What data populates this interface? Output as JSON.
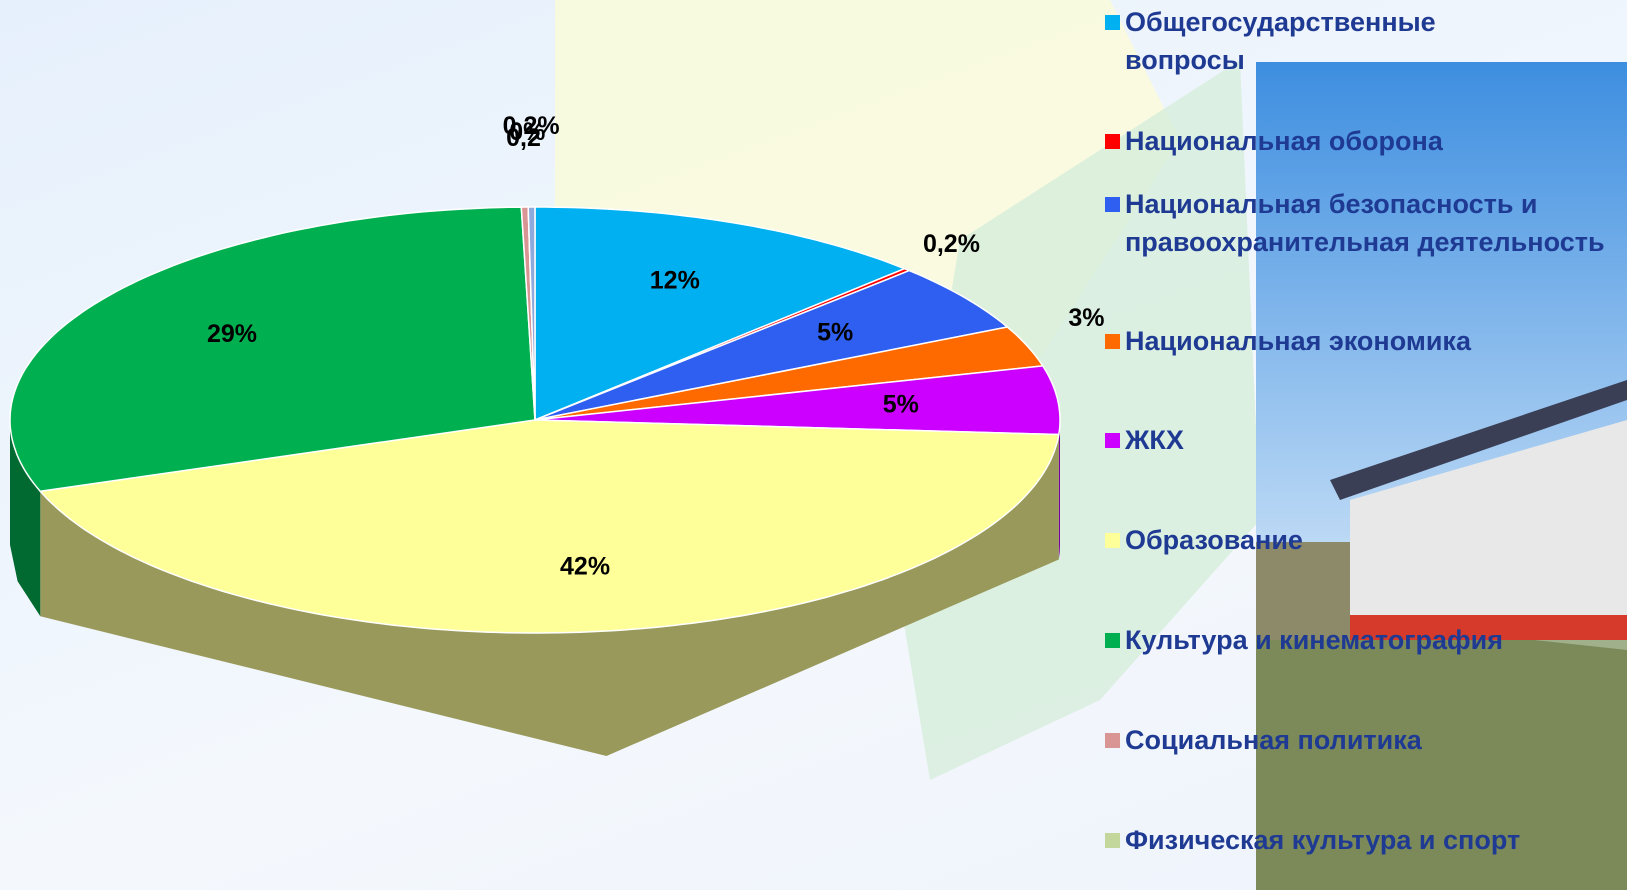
{
  "chart_data": {
    "type": "pie3d",
    "categories": [
      "Общегосударственные вопросы",
      "Национальная оборона",
      "Национальная безопасность и правоохранительная деятельность",
      "Национальная экономика",
      "ЖКХ",
      "Образование",
      "Культура и кинематография",
      "Социальная политика",
      "Физическая культура и спорт",
      null
    ],
    "values": [
      12,
      0.2,
      5,
      3,
      5,
      42,
      29,
      0.2,
      0,
      0.2
    ],
    "value_labels": [
      "12%",
      "0,2%",
      "5%",
      "3%",
      "5%",
      "42%",
      "29%",
      "0,2",
      "0%",
      "0,2%"
    ],
    "colors": [
      "#00b0f0",
      "#ff0000",
      "#2f5ff0",
      "#ff6a00",
      "#cc00ff",
      "#ffff99",
      "#00b050",
      "#d99594",
      "#c3d69b",
      "#8ea9db"
    ],
    "legend": "right"
  }
}
